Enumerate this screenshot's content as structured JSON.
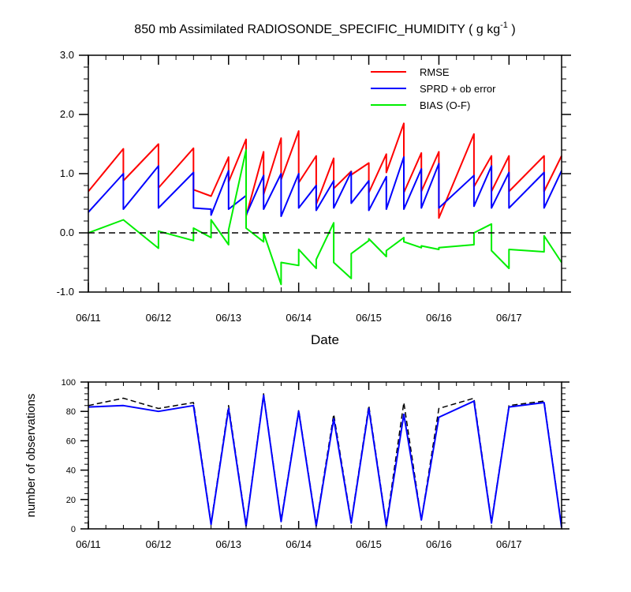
{
  "chart_data": [
    {
      "type": "line",
      "title": "850 mb Assimilated RADIOSONDE_SPECIFIC_HUMIDITY ( g kg",
      "title_superscript": "-1",
      "title_suffix": " )",
      "xlabel": "Date",
      "ylabel": "",
      "ylim": [
        -1.0,
        3.0
      ],
      "xlim": [
        0,
        6.75
      ],
      "x_ticks": [
        0,
        1,
        2,
        3,
        4,
        5,
        6
      ],
      "x_tick_labels": [
        "06/11",
        "06/12",
        "06/13",
        "06/14",
        "06/15",
        "06/16",
        "06/17"
      ],
      "y_ticks": [
        -1.0,
        0.0,
        1.0,
        2.0,
        3.0
      ],
      "y_tick_labels": [
        "-1.0",
        "0.0",
        "1.0",
        "2.0",
        "3.0"
      ],
      "grid": false,
      "legend_position": "top-right",
      "reference_line": 0.0,
      "series": [
        {
          "name": "RMSE",
          "color": "#ff0000",
          "x": [
            0,
            0.5,
            0.5,
            1,
            1,
            1.5,
            1.5,
            1.75,
            2,
            2,
            2.25,
            2.25,
            2.5,
            2.5,
            2.75,
            2.75,
            3,
            3,
            3.25,
            3.25,
            3.5,
            3.5,
            3.75,
            3.75,
            4,
            4,
            4.25,
            4.25,
            4.5,
            4.5,
            4.75,
            4.75,
            5,
            5,
            5.5,
            5.5,
            5.75,
            5.75,
            6,
            6,
            6.5,
            6.5,
            6.75
          ],
          "y": [
            0.7,
            1.42,
            0.88,
            1.5,
            0.76,
            1.43,
            0.73,
            0.62,
            1.28,
            0.86,
            1.58,
            0.28,
            1.37,
            0.65,
            1.6,
            0.9,
            1.72,
            0.85,
            1.3,
            0.48,
            1.26,
            0.75,
            1.04,
            0.98,
            1.18,
            0.68,
            1.33,
            1.02,
            1.85,
            0.68,
            1.35,
            0.7,
            1.37,
            0.25,
            1.67,
            0.78,
            1.3,
            0.7,
            1.3,
            0.7,
            1.3,
            0.7,
            1.3
          ]
        },
        {
          "name": "SPRD + ob error",
          "color": "#0000ff",
          "x": [
            0,
            0.5,
            0.5,
            1,
            1,
            1.5,
            1.5,
            1.75,
            1.75,
            2,
            2,
            2.25,
            2.25,
            2.5,
            2.5,
            2.75,
            2.75,
            3,
            3,
            3.25,
            3.25,
            3.5,
            3.5,
            3.75,
            3.75,
            4,
            4,
            4.25,
            4.25,
            4.5,
            4.5,
            4.75,
            4.75,
            5,
            5,
            5.5,
            5.5,
            5.75,
            5.75,
            6,
            6,
            6.5,
            6.5,
            6.75
          ],
          "y": [
            0.35,
            1.0,
            0.4,
            1.13,
            0.42,
            1.02,
            0.42,
            0.4,
            0.3,
            1.05,
            0.4,
            0.63,
            0.3,
            0.97,
            0.4,
            1.0,
            0.28,
            1.0,
            0.42,
            0.8,
            0.38,
            0.88,
            0.42,
            1.03,
            0.5,
            0.88,
            0.38,
            0.95,
            0.4,
            1.28,
            0.4,
            1.08,
            0.42,
            1.17,
            0.42,
            0.97,
            0.45,
            1.13,
            0.42,
            1.02,
            0.42,
            1.02,
            0.42,
            1.05
          ]
        },
        {
          "name": "BIAS (O-F)",
          "color": "#00ee00",
          "x": [
            0,
            0.5,
            1,
            1,
            1.5,
            1.5,
            1.75,
            1.75,
            2,
            2,
            2.25,
            2.25,
            2.5,
            2.5,
            2.75,
            2.75,
            3,
            3,
            3.25,
            3.25,
            3.5,
            3.5,
            3.75,
            3.75,
            4,
            4,
            4.25,
            4.25,
            4.5,
            4.5,
            4.75,
            4.75,
            5,
            5,
            5.5,
            5.5,
            5.75,
            5.75,
            6,
            6,
            6.5,
            6.5,
            6.75
          ],
          "y": [
            0.0,
            0.22,
            -0.26,
            0.03,
            -0.13,
            0.08,
            -0.08,
            0.22,
            -0.2,
            0.05,
            1.4,
            0.08,
            -0.15,
            0.0,
            -0.87,
            -0.5,
            -0.55,
            -0.28,
            -0.6,
            -0.45,
            0.17,
            -0.5,
            -0.77,
            -0.35,
            -0.13,
            -0.1,
            -0.4,
            -0.3,
            -0.08,
            -0.15,
            -0.25,
            -0.22,
            -0.28,
            -0.25,
            -0.2,
            0.0,
            0.15,
            -0.3,
            -0.6,
            -0.28,
            -0.32,
            -0.05,
            -0.5
          ]
        }
      ]
    },
    {
      "type": "line",
      "title": "",
      "xlabel": "",
      "ylabel": "number of observations",
      "ylim": [
        0,
        100
      ],
      "xlim": [
        0,
        6.75
      ],
      "x_ticks": [
        0,
        1,
        2,
        3,
        4,
        5,
        6
      ],
      "x_tick_labels": [
        "06/11",
        "06/12",
        "06/13",
        "06/14",
        "06/15",
        "06/16",
        "06/17"
      ],
      "y_ticks": [
        0,
        20,
        40,
        60,
        80,
        100
      ],
      "y_tick_labels": [
        "0",
        "20",
        "40",
        "60",
        "80",
        "100"
      ],
      "grid": false,
      "series": [
        {
          "color": "#000000",
          "dash": true,
          "x": [
            0,
            0.5,
            1,
            1.5,
            1.75,
            2,
            2.25,
            2.5,
            2.75,
            3,
            3.25,
            3.5,
            3.75,
            4,
            4.25,
            4.5,
            4.75,
            5,
            5.5,
            5.75,
            6,
            6.5,
            6.75
          ],
          "y": [
            84,
            89,
            82,
            86,
            4,
            84,
            3,
            92,
            6,
            81,
            3,
            78,
            5,
            84,
            3,
            86,
            6,
            82,
            89,
            5,
            84,
            87,
            2
          ]
        },
        {
          "color": "#0000ff",
          "dash": false,
          "x": [
            0,
            0.5,
            1,
            1.5,
            1.75,
            2,
            2.25,
            2.5,
            2.75,
            3,
            3.25,
            3.5,
            3.75,
            4,
            4.25,
            4.5,
            4.75,
            5,
            5.5,
            5.75,
            6,
            6.5,
            6.75
          ],
          "y": [
            83,
            84,
            80,
            84,
            3,
            82,
            2,
            91,
            5,
            80,
            2,
            75,
            4,
            82,
            2,
            78,
            6,
            76,
            87,
            4,
            83,
            86,
            1
          ]
        }
      ]
    }
  ]
}
